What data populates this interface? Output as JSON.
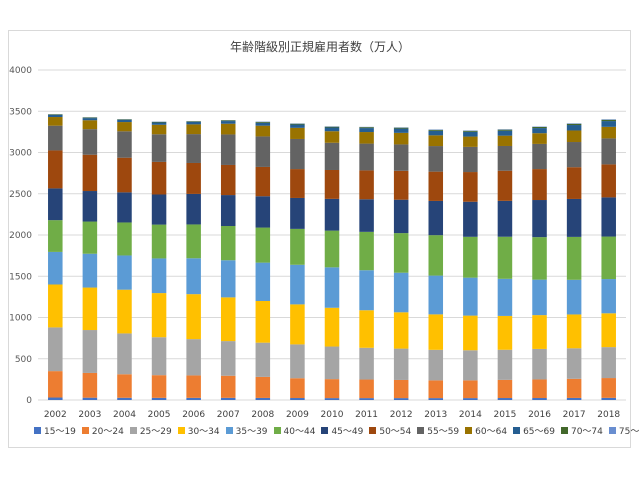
{
  "chart_data": {
    "type": "bar",
    "stacked": true,
    "title": "年齢階級別正規雇用者数（万人）",
    "categories": [
      "2002",
      "2003",
      "2004",
      "2005",
      "2006",
      "2007",
      "2008",
      "2009",
      "2010",
      "2011",
      "2012",
      "2013",
      "2014",
      "2015",
      "2016",
      "2017",
      "2018"
    ],
    "ylim": [
      0,
      4000
    ],
    "yticks": [
      0,
      500,
      1000,
      1500,
      2000,
      2500,
      3000,
      3500,
      4000
    ],
    "grid": true,
    "legend_position": "bottom",
    "series": [
      {
        "name": "15～19",
        "color": "#4472c4",
        "values": [
          30,
          28,
          27,
          26,
          26,
          26,
          25,
          24,
          23,
          23,
          23,
          23,
          23,
          24,
          24,
          25,
          26
        ]
      },
      {
        "name": "20～24",
        "color": "#ed7d31",
        "values": [
          320,
          300,
          285,
          275,
          272,
          268,
          255,
          240,
          230,
          225,
          220,
          215,
          215,
          220,
          225,
          232,
          240
        ]
      },
      {
        "name": "25～29",
        "color": "#a5a5a5",
        "values": [
          530,
          520,
          495,
          460,
          440,
          420,
          415,
          410,
          395,
          385,
          380,
          370,
          365,
          365,
          370,
          370,
          375
        ]
      },
      {
        "name": "30～34",
        "color": "#ffc000",
        "values": [
          520,
          515,
          530,
          535,
          545,
          530,
          505,
          485,
          470,
          455,
          440,
          430,
          420,
          410,
          410,
          410,
          410
        ]
      },
      {
        "name": "35～39",
        "color": "#5b9bd5",
        "values": [
          395,
          410,
          415,
          420,
          435,
          450,
          465,
          480,
          490,
          485,
          480,
          470,
          460,
          450,
          430,
          420,
          415
        ]
      },
      {
        "name": "40～44",
        "color": "#70ad47",
        "values": [
          385,
          390,
          400,
          410,
          410,
          415,
          425,
          435,
          445,
          465,
          480,
          490,
          495,
          510,
          515,
          520,
          515
        ]
      },
      {
        "name": "45～49",
        "color": "#264478",
        "values": [
          385,
          370,
          365,
          365,
          370,
          375,
          380,
          375,
          385,
          395,
          405,
          415,
          425,
          435,
          450,
          460,
          475
        ]
      },
      {
        "name": "50～54",
        "color": "#9e480e",
        "values": [
          460,
          440,
          420,
          395,
          375,
          365,
          355,
          350,
          350,
          350,
          350,
          355,
          360,
          365,
          375,
          385,
          400
        ]
      },
      {
        "name": "55～59",
        "color": "#636363",
        "values": [
          300,
          310,
          320,
          335,
          350,
          370,
          370,
          365,
          330,
          325,
          320,
          310,
          305,
          300,
          305,
          305,
          315
        ]
      },
      {
        "name": "60～64",
        "color": "#997300",
        "values": [
          105,
          108,
          112,
          115,
          118,
          130,
          130,
          135,
          140,
          140,
          140,
          130,
          125,
          125,
          130,
          140,
          140
        ]
      },
      {
        "name": "65～69",
        "color": "#255e91",
        "values": [
          25,
          26,
          27,
          28,
          30,
          32,
          36,
          40,
          45,
          48,
          52,
          55,
          58,
          60,
          62,
          66,
          70
        ]
      },
      {
        "name": "70～74",
        "color": "#43682b",
        "values": [
          7,
          7,
          7,
          8,
          8,
          9,
          10,
          10,
          10,
          11,
          11,
          12,
          12,
          13,
          14,
          15,
          16
        ]
      },
      {
        "name": "75～",
        "color": "#698ed0",
        "values": [
          3,
          3,
          3,
          3,
          3,
          3,
          4,
          4,
          4,
          4,
          4,
          5,
          5,
          5,
          5,
          6,
          6
        ]
      }
    ]
  }
}
